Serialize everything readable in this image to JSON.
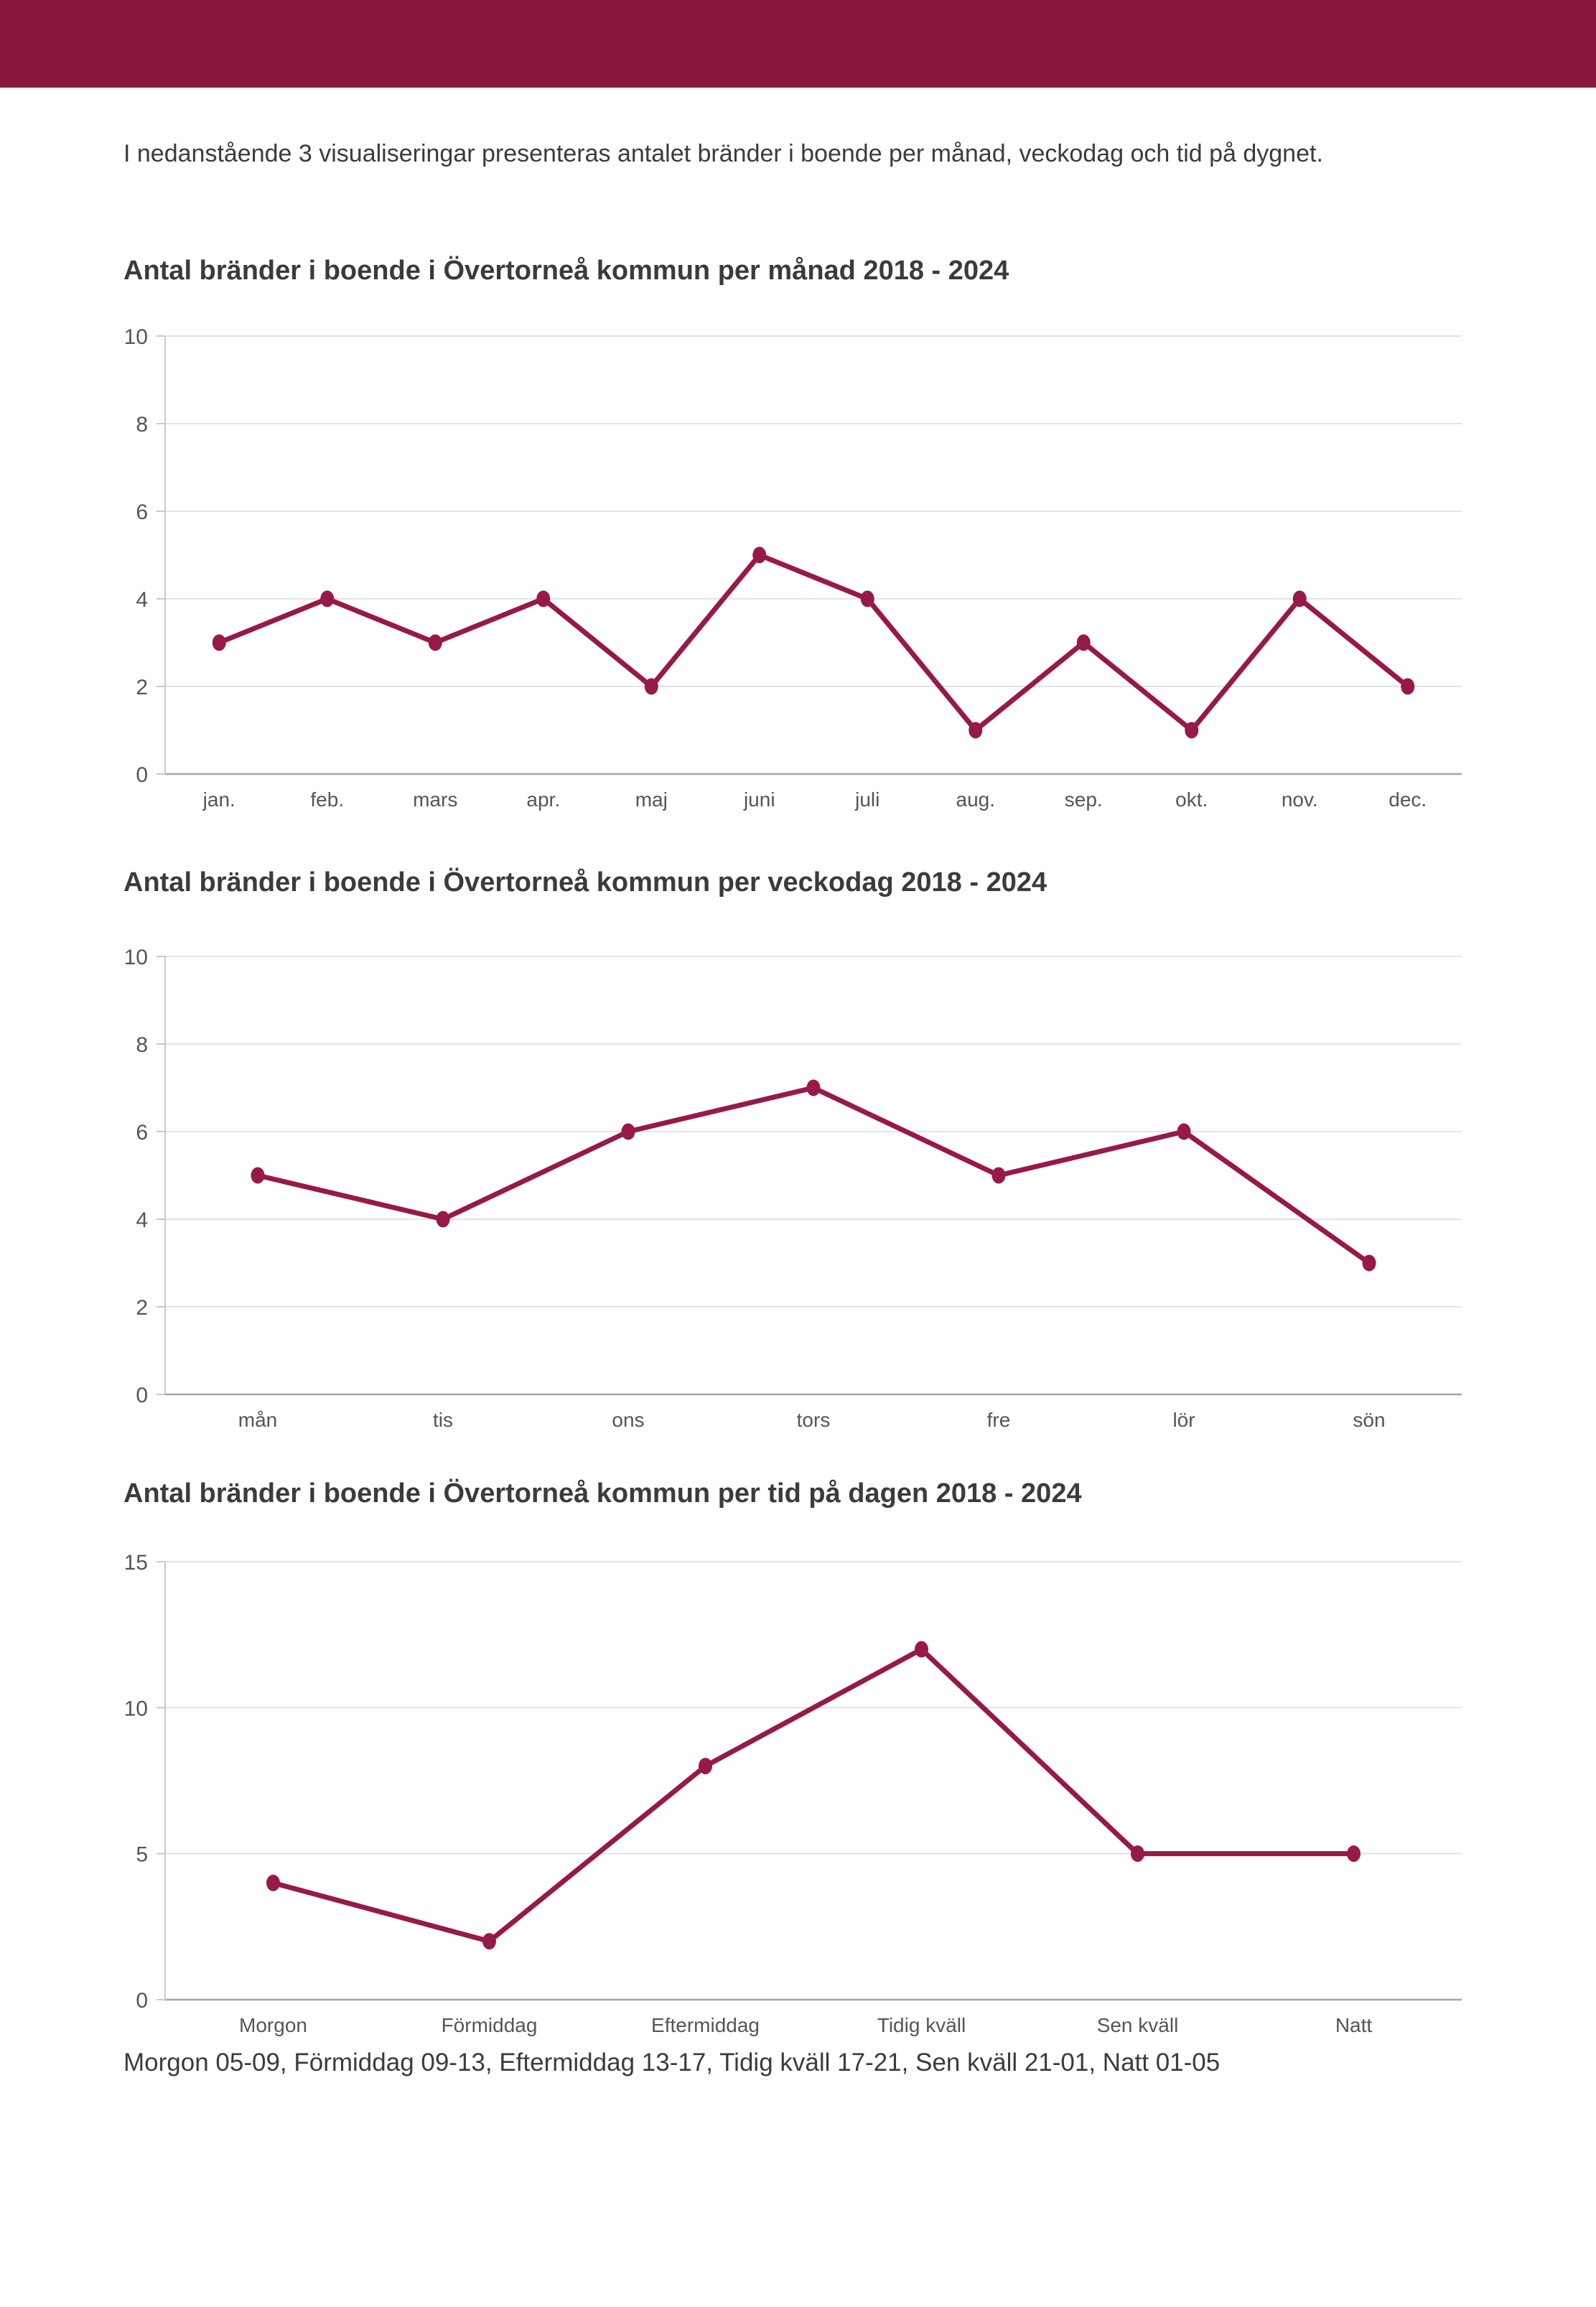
{
  "theme": {
    "header_color": "#8B163D",
    "line_color": "#97194A",
    "point_color": "#97194A",
    "title_color": "#3B3B3B",
    "text_color": "#3B3B3B",
    "axis_label_color": "#555555",
    "grid_color": "#DCDCDC",
    "axis_line_color": "#C9C9C9",
    "zero_line_color": "#A6A6A6"
  },
  "page": {
    "intro": "I nedanstående 3 visualiseringar presenteras antalet bränder i boende per månad, veckodag och tid på dygnet.",
    "footer_note": "Morgon 05-09, Förmiddag 09-13, Eftermiddag 13-17, Tidig kväll 17-21, Sen kväll 21-01, Natt 01-05"
  },
  "chart_data": [
    {
      "type": "line",
      "title": "Antal bränder i boende i Övertorneå kommun per månad 2018 - 2024",
      "categories": [
        "jan.",
        "feb.",
        "mars",
        "apr.",
        "maj",
        "juni",
        "juli",
        "aug.",
        "sep.",
        "okt.",
        "nov.",
        "dec."
      ],
      "values": [
        3,
        4,
        3,
        4,
        2,
        5,
        4,
        1,
        3,
        1,
        4,
        2
      ],
      "xlabel": "",
      "ylabel": "",
      "ylim": [
        0,
        10
      ],
      "yticks": [
        0,
        2,
        4,
        6,
        8,
        10
      ],
      "grid": "horizontal",
      "legend": "none"
    },
    {
      "type": "line",
      "title": "Antal bränder i boende i Övertorneå kommun per veckodag 2018 - 2024",
      "categories": [
        "mån",
        "tis",
        "ons",
        "tors",
        "fre",
        "lör",
        "sön"
      ],
      "values": [
        5,
        4,
        6,
        7,
        5,
        6,
        3
      ],
      "xlabel": "",
      "ylabel": "",
      "ylim": [
        0,
        10
      ],
      "yticks": [
        0,
        2,
        4,
        6,
        8,
        10
      ],
      "grid": "horizontal",
      "legend": "none"
    },
    {
      "type": "line",
      "title": "Antal bränder i boende i Övertorneå kommun per tid på dagen 2018 - 2024",
      "categories": [
        "Morgon",
        "Förmiddag",
        "Eftermiddag",
        "Tidig kväll",
        "Sen kväll",
        "Natt"
      ],
      "values": [
        4,
        2,
        8,
        12,
        5,
        5
      ],
      "xlabel": "",
      "ylabel": "",
      "ylim": [
        0,
        15
      ],
      "yticks": [
        0,
        5,
        10,
        15
      ],
      "grid": "horizontal",
      "legend": "none"
    }
  ]
}
